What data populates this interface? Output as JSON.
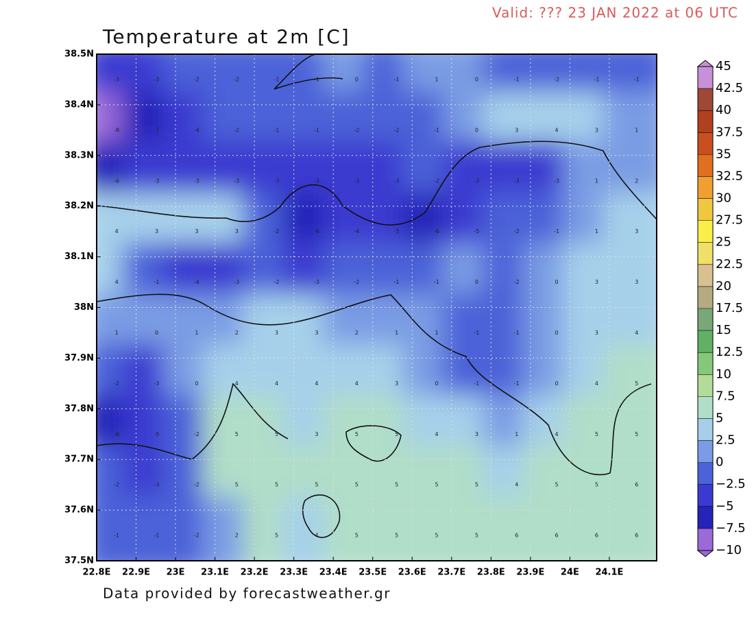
{
  "header": {
    "valid": "Valid: ??? 23 JAN 2022 at 06 UTC",
    "title": "Temperature at 2m [C]"
  },
  "map": {
    "xlim": [
      22.8,
      24.22
    ],
    "ylim": [
      37.5,
      38.5
    ],
    "lon_ticks": [
      {
        "value": 22.8,
        "label": "22.8E"
      },
      {
        "value": 22.9,
        "label": "22.9E"
      },
      {
        "value": 23,
        "label": "23E"
      },
      {
        "value": 23.1,
        "label": "23.1E"
      },
      {
        "value": 23.2,
        "label": "23.2E"
      },
      {
        "value": 23.3,
        "label": "23.3E"
      },
      {
        "value": 23.4,
        "label": "23.4E"
      },
      {
        "value": 23.5,
        "label": "23.5E"
      },
      {
        "value": 23.6,
        "label": "23.6E"
      },
      {
        "value": 23.7,
        "label": "23.7E"
      },
      {
        "value": 23.8,
        "label": "23.8E"
      },
      {
        "value": 23.9,
        "label": "23.9E"
      },
      {
        "value": 24,
        "label": "24E"
      },
      {
        "value": 24.1,
        "label": "24.1E"
      }
    ],
    "lat_ticks": [
      {
        "value": 38.5,
        "label": "38.5N"
      },
      {
        "value": 38.4,
        "label": "38.4N"
      },
      {
        "value": 38.3,
        "label": "38.3N"
      },
      {
        "value": 38.2,
        "label": "38.2N"
      },
      {
        "value": 38.1,
        "label": "38.1N"
      },
      {
        "value": 38,
        "label": "38N"
      },
      {
        "value": 37.9,
        "label": "37.9N"
      },
      {
        "value": 37.8,
        "label": "37.8N"
      },
      {
        "value": 37.7,
        "label": "37.7N"
      },
      {
        "value": 37.6,
        "label": "37.6N"
      },
      {
        "value": 37.5,
        "label": "37.5N"
      }
    ],
    "grid": [
      [
        -3,
        -3,
        -2,
        -2,
        -1,
        -1,
        0,
        -1,
        1,
        0,
        -1,
        -2,
        -1,
        -1
      ],
      [
        -8,
        -7,
        -4,
        -2,
        -1,
        -1,
        -2,
        -2,
        -1,
        0,
        3,
        4,
        3,
        1
      ],
      [
        -6,
        -3,
        -3,
        -3,
        -3,
        -3,
        -3,
        -3,
        -2,
        -3,
        -3,
        -3,
        1,
        2
      ],
      [
        4,
        3,
        3,
        3,
        -2,
        -6,
        -4,
        -5,
        -6,
        -5,
        -2,
        -1,
        1,
        3
      ],
      [
        4,
        -1,
        -4,
        -3,
        -2,
        -3,
        -2,
        -1,
        -1,
        0,
        -2,
        0,
        3,
        3
      ],
      [
        1,
        0,
        1,
        2,
        3,
        3,
        2,
        1,
        1,
        -1,
        -1,
        0,
        3,
        4
      ],
      [
        -2,
        -3,
        0,
        4,
        4,
        4,
        4,
        3,
        0,
        -1,
        -1,
        0,
        4,
        5
      ],
      [
        -6,
        -5,
        -2,
        5,
        5,
        3,
        5,
        5,
        4,
        3,
        1,
        4,
        5,
        5
      ],
      [
        -2,
        -3,
        -2,
        5,
        5,
        5,
        5,
        5,
        5,
        5,
        4,
        5,
        5,
        6
      ],
      [
        -1,
        -1,
        -2,
        2,
        5,
        4,
        5,
        5,
        5,
        5,
        6,
        6,
        6,
        6
      ]
    ]
  },
  "colorbar": {
    "ticks": [
      45,
      42.5,
      40,
      37.5,
      35,
      32.5,
      30,
      27.5,
      25,
      22.5,
      20,
      17.5,
      15,
      12.5,
      10,
      7.5,
      5,
      2.5,
      0,
      {
        "value": -2.5,
        "label": "−2.5"
      },
      {
        "value": -5,
        "label": "−5"
      },
      {
        "value": -7.5,
        "label": "−7.5"
      },
      {
        "value": -10,
        "label": "−10"
      }
    ],
    "colors": [
      "#9a6ad8",
      "#2424b8",
      "#3a3ad0",
      "#4c62d8",
      "#7a9ce4",
      "#a6d0ea",
      "#b0dec8",
      "#b2dc98",
      "#86c87a",
      "#62b064",
      "#78a878",
      "#b6aa80",
      "#d8c090",
      "#f0e068",
      "#f8f048",
      "#f0c840",
      "#f0a030",
      "#e07020",
      "#c85020",
      "#b04020",
      "#a04838",
      "#c890d8"
    ]
  },
  "footer": "Data provided by forecastweather.gr"
}
